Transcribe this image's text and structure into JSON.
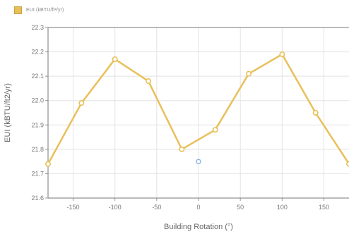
{
  "legend": {
    "label": "EUI (kBTU/ft²/yr)",
    "color": "#e8c05a"
  },
  "chart_data": {
    "type": "line",
    "xlabel": "Building Rotation (°)",
    "ylabel": "EUI (kBTU/ft2/yr)",
    "xlim": [
      -180,
      180
    ],
    "ylim": [
      21.6,
      22.3
    ],
    "x_ticks": [
      -150,
      -100,
      -50,
      0,
      50,
      100,
      150
    ],
    "y_ticks": [
      21.6,
      21.7,
      21.8,
      21.9,
      22.0,
      22.1,
      22.2,
      22.3
    ],
    "grid": true,
    "legend_position": "top-left",
    "series": [
      {
        "name": "EUI (kBTU/ft²/yr)",
        "color": "#e8c05a",
        "x": [
          -180,
          -140,
          -100,
          -60,
          -20,
          20,
          60,
          100,
          140,
          180
        ],
        "y": [
          21.74,
          21.99,
          22.17,
          22.08,
          21.8,
          21.88,
          22.11,
          22.19,
          21.95,
          21.74
        ]
      }
    ],
    "markers": [
      {
        "x": 0,
        "y": 21.75,
        "color": "#8ab4e8"
      }
    ]
  }
}
